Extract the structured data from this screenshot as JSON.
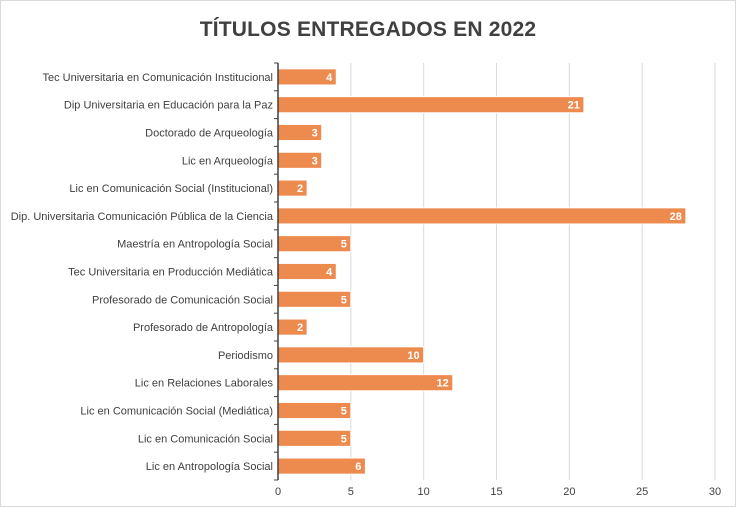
{
  "chart_data": {
    "type": "bar",
    "orientation": "horizontal",
    "title": "TÍTULOS ENTREGADOS EN 2022",
    "categories": [
      "Tec Universitaria en Comunicación Institucional",
      "Dip Universitaria en Educación para la Paz",
      "Doctorado de Arqueología",
      "Lic en Arqueología",
      "Lic en Comunicación Social (Institucional)",
      "Dip. Universitaria Comunicación Pública de la Ciencia",
      "Maestría en Antropología Social",
      "Tec Universitaria en Producción Mediática",
      "Profesorado de Comunicación Social",
      "Profesorado de Antropología",
      "Periodismo",
      "Lic en Relaciones Laborales",
      "Lic en Comunicación Social (Mediática)",
      "Lic en Comunicación Social",
      "Lic en Antropología Social"
    ],
    "values": [
      4,
      21,
      3,
      3,
      2,
      28,
      5,
      4,
      5,
      2,
      10,
      12,
      5,
      5,
      6
    ],
    "xlim": [
      0,
      30
    ],
    "xticks": [
      0,
      5,
      10,
      15,
      20,
      25,
      30
    ],
    "xlabel": "",
    "ylabel": "",
    "grid": true,
    "data_labels": true,
    "colors": {
      "bar": "#ed8b4f",
      "bar_edge": "#ffffff",
      "grid": "#d9d9d9",
      "axis": "#404040",
      "title": "#404040"
    }
  }
}
